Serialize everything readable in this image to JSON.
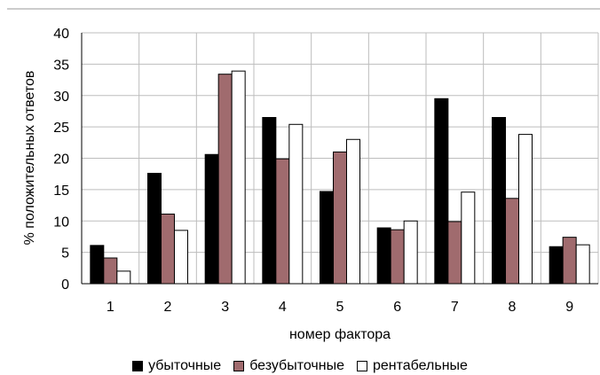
{
  "chart_data": {
    "type": "bar",
    "categories": [
      "1",
      "2",
      "3",
      "4",
      "5",
      "6",
      "7",
      "8",
      "9"
    ],
    "series": [
      {
        "name": "убыточные",
        "color": "#000000",
        "values": [
          6.1,
          17.6,
          20.6,
          26.5,
          14.7,
          8.9,
          29.5,
          26.5,
          5.9
        ]
      },
      {
        "name": "безубыточные",
        "color": "#a06b6e",
        "values": [
          4.1,
          11.1,
          33.4,
          19.9,
          21.0,
          8.6,
          9.9,
          13.6,
          7.4
        ]
      },
      {
        "name": "рентабельные",
        "color": "#ffffff",
        "values": [
          2.0,
          8.5,
          33.9,
          25.4,
          23.0,
          10.0,
          14.6,
          23.8,
          6.2
        ]
      }
    ],
    "xlabel": "номер фактора",
    "ylabel": "% положительных ответов",
    "ylim": [
      0,
      40
    ],
    "yticks": [
      0,
      5,
      10,
      15,
      20,
      25,
      30,
      35,
      40
    ],
    "grid": true,
    "legend_position": "bottom"
  }
}
